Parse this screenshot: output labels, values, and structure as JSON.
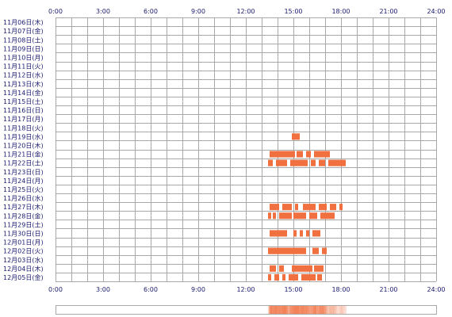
{
  "chart_data": {
    "type": "heatmap",
    "title": "",
    "xlabel": "",
    "ylabel": "",
    "xlim": [
      0,
      24
    ],
    "x_ticks": [
      "0:00",
      "3:00",
      "6:00",
      "9:00",
      "12:00",
      "15:00",
      "18:00",
      "21:00",
      "24:00"
    ],
    "grid": true,
    "days": [
      "11月06日(木)",
      "11月07日(金)",
      "11月08日(土)",
      "11月09日(日)",
      "11月10日(月)",
      "11月11日(火)",
      "11月12日(水)",
      "11月13日(木)",
      "11月14日(金)",
      "11月15日(土)",
      "11月16日(日)",
      "11月17日(月)",
      "11月18日(火)",
      "11月19日(水)",
      "11月20日(木)",
      "11月21日(金)",
      "11月22日(土)",
      "11月23日(日)",
      "11月24日(月)",
      "11月25日(火)",
      "11月26日(水)",
      "11月27日(木)",
      "11月28日(金)",
      "11月29日(土)",
      "11月30日(日)",
      "12月01日(月)",
      "12月02日(火)",
      "12月03日(水)",
      "12月04日(木)",
      "12月05日(金)"
    ],
    "activity": [
      {
        "day": 13,
        "intervals": [
          [
            14.9,
            15.4
          ]
        ]
      },
      {
        "day": 15,
        "intervals": [
          [
            13.5,
            15.1
          ],
          [
            15.2,
            15.6
          ],
          [
            15.8,
            16.1
          ],
          [
            16.3,
            17.3
          ]
        ]
      },
      {
        "day": 16,
        "intervals": [
          [
            13.4,
            13.7
          ],
          [
            13.9,
            14.6
          ],
          [
            14.8,
            15.9
          ],
          [
            16.1,
            16.4
          ],
          [
            16.6,
            17.0
          ],
          [
            17.2,
            18.3
          ]
        ]
      },
      {
        "day": 21,
        "intervals": [
          [
            13.5,
            14.1
          ],
          [
            14.3,
            14.9
          ],
          [
            15.1,
            15.3
          ],
          [
            15.6,
            16.4
          ],
          [
            16.6,
            17.1
          ],
          [
            17.3,
            17.7
          ],
          [
            17.9,
            18.1
          ]
        ]
      },
      {
        "day": 22,
        "intervals": [
          [
            13.4,
            13.6
          ],
          [
            13.7,
            13.9
          ],
          [
            14.1,
            14.9
          ],
          [
            15.0,
            15.8
          ],
          [
            16.0,
            16.5
          ],
          [
            16.7,
            17.6
          ]
        ]
      },
      {
        "day": 24,
        "intervals": [
          [
            13.5,
            14.6
          ],
          [
            15.0,
            15.2
          ],
          [
            15.4,
            15.6
          ],
          [
            15.8,
            16.0
          ],
          [
            16.2,
            16.7
          ]
        ]
      },
      {
        "day": 26,
        "intervals": [
          [
            13.4,
            15.8
          ],
          [
            16.2,
            16.6
          ],
          [
            16.8,
            17.1
          ]
        ]
      },
      {
        "day": 28,
        "intervals": [
          [
            13.5,
            13.9
          ],
          [
            14.1,
            14.4
          ],
          [
            14.9,
            16.2
          ],
          [
            16.3,
            16.9
          ]
        ]
      },
      {
        "day": 29,
        "intervals": [
          [
            13.4,
            13.6
          ],
          [
            13.8,
            14.1
          ],
          [
            14.3,
            14.5
          ],
          [
            14.7,
            15.3
          ],
          [
            15.5,
            16.4
          ],
          [
            16.5,
            16.8
          ]
        ]
      }
    ],
    "colors": {
      "active": "#f07040",
      "grid": "#a8a8a8",
      "border": "#a8a8a8",
      "label": "#1a1a6e",
      "summary_bar": "#f4a090"
    }
  }
}
